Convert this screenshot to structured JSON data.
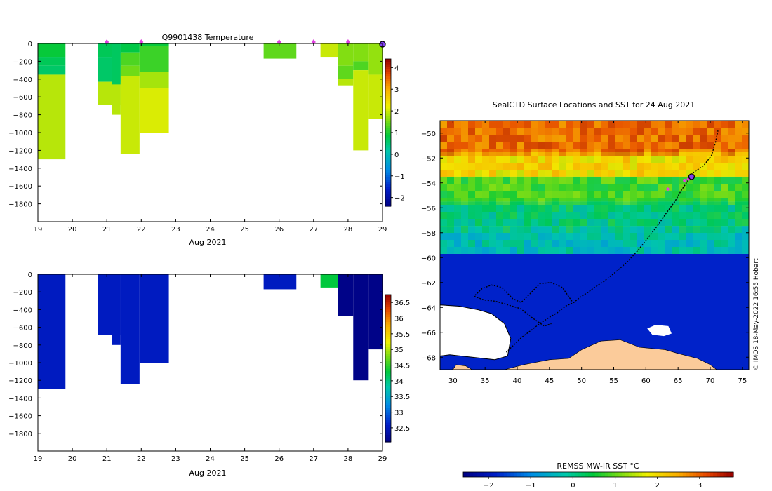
{
  "chart_data": [
    {
      "type": "heatmap",
      "title": "Q9901438  Temperature",
      "xlabel": "Aug 2021",
      "ylabel": "",
      "xlim": [
        19,
        29
      ],
      "ylim": [
        -2000,
        0
      ],
      "x_ticks": [
        19,
        20,
        21,
        22,
        23,
        24,
        25,
        26,
        27,
        28,
        29
      ],
      "y_ticks": [
        0,
        -200,
        -400,
        -600,
        -800,
        -1000,
        -1200,
        -1400,
        -1600,
        -1800
      ],
      "colorbar": {
        "min": -2.4,
        "max": 4.4,
        "ticks": [
          -2,
          -1,
          0,
          1,
          2,
          3,
          4
        ]
      },
      "profile_markers": [
        21,
        22,
        26,
        27,
        28
      ],
      "latest_marker": 29,
      "profiles": [
        {
          "t0": 19.0,
          "t1": 19.8,
          "depth": 1300,
          "layers": [
            {
              "to": 150,
              "v": 0.9
            },
            {
              "to": 250,
              "v": 0.7
            },
            {
              "to": 350,
              "v": 0.6
            },
            {
              "to": 1300,
              "v": 1.9
            }
          ]
        },
        {
          "t0": 20.75,
          "t1": 21.4,
          "depth": 690,
          "layers": [
            {
              "to": 150,
              "v": 0.7
            },
            {
              "to": 430,
              "v": 0.6
            },
            {
              "to": 690,
              "v": 1.9
            }
          ]
        },
        {
          "t0": 21.15,
          "t1": 21.4,
          "depth": 800,
          "layers": [
            {
              "to": 460,
              "v": 0.65
            },
            {
              "to": 800,
              "v": 1.9
            }
          ]
        },
        {
          "t0": 21.4,
          "t1": 21.95,
          "depth": 1240,
          "layers": [
            {
              "to": 100,
              "v": 0.8
            },
            {
              "to": 250,
              "v": 1.3
            },
            {
              "to": 370,
              "v": 1.5
            },
            {
              "to": 1240,
              "v": 2.0
            }
          ]
        },
        {
          "t0": 21.95,
          "t1": 22.8,
          "depth": 1000,
          "layers": [
            {
              "to": 30,
              "v": 0.9
            },
            {
              "to": 320,
              "v": 1.2
            },
            {
              "to": 500,
              "v": 1.8
            },
            {
              "to": 1000,
              "v": 2.1
            }
          ]
        },
        {
          "t0": 25.55,
          "t1": 26.5,
          "depth": 170,
          "layers": [
            {
              "to": 170,
              "v": 1.4
            }
          ]
        },
        {
          "t0": 27.2,
          "t1": 27.7,
          "depth": 150,
          "layers": [
            {
              "to": 150,
              "v": 2.0
            }
          ]
        },
        {
          "t0": 27.7,
          "t1": 28.15,
          "depth": 470,
          "layers": [
            {
              "to": 250,
              "v": 1.6
            },
            {
              "to": 400,
              "v": 1.4
            },
            {
              "to": 470,
              "v": 1.9
            }
          ]
        },
        {
          "t0": 28.15,
          "t1": 28.6,
          "depth": 1200,
          "layers": [
            {
              "to": 200,
              "v": 1.6
            },
            {
              "to": 300,
              "v": 1.3
            },
            {
              "to": 1200,
              "v": 2.0
            }
          ]
        },
        {
          "t0": 28.6,
          "t1": 29.05,
          "depth": 850,
          "layers": [
            {
              "to": 350,
              "v": 1.7
            },
            {
              "to": 850,
              "v": 2.0
            }
          ]
        }
      ]
    },
    {
      "type": "heatmap",
      "title": "",
      "xlabel": "Aug 2021",
      "ylabel": "",
      "xlim": [
        19,
        29
      ],
      "ylim": [
        -2000,
        0
      ],
      "x_ticks": [
        19,
        20,
        21,
        22,
        23,
        24,
        25,
        26,
        27,
        28,
        29
      ],
      "y_ticks": [
        0,
        -200,
        -400,
        -600,
        -800,
        -1000,
        -1200,
        -1400,
        -1600,
        -1800
      ],
      "colorbar": {
        "min": 32.05,
        "max": 36.75,
        "ticks": [
          32.5,
          33,
          33.5,
          34,
          34.5,
          35,
          35.5,
          36,
          36.5
        ]
      },
      "profiles": [
        {
          "t0": 19.0,
          "t1": 19.8,
          "depth": 1300,
          "layers": [
            {
              "to": 1300,
              "v": 32.55
            }
          ]
        },
        {
          "t0": 20.75,
          "t1": 21.4,
          "depth": 690,
          "layers": [
            {
              "to": 690,
              "v": 32.55
            }
          ]
        },
        {
          "t0": 21.15,
          "t1": 21.4,
          "depth": 800,
          "layers": [
            {
              "to": 800,
              "v": 32.55
            }
          ]
        },
        {
          "t0": 21.4,
          "t1": 21.95,
          "depth": 1240,
          "layers": [
            {
              "to": 1240,
              "v": 32.55
            }
          ]
        },
        {
          "t0": 21.95,
          "t1": 22.8,
          "depth": 1000,
          "layers": [
            {
              "to": 1000,
              "v": 32.55
            }
          ]
        },
        {
          "t0": 25.55,
          "t1": 26.5,
          "depth": 170,
          "layers": [
            {
              "to": 170,
              "v": 32.55
            }
          ]
        },
        {
          "t0": 27.2,
          "t1": 27.7,
          "depth": 150,
          "layers": [
            {
              "to": 150,
              "v": 34.3
            }
          ]
        },
        {
          "t0": 27.7,
          "t1": 28.15,
          "depth": 470,
          "layers": [
            {
              "to": 470,
              "v": 32.1
            }
          ]
        },
        {
          "t0": 28.15,
          "t1": 28.6,
          "depth": 1200,
          "layers": [
            {
              "to": 1200,
              "v": 32.1
            }
          ]
        },
        {
          "t0": 28.6,
          "t1": 29.05,
          "depth": 850,
          "layers": [
            {
              "to": 850,
              "v": 32.1
            }
          ]
        }
      ]
    },
    {
      "type": "heatmap",
      "title": "SealCTD Surface Locations and SST for 24 Aug 2021",
      "xlabel": "",
      "ylabel": "",
      "xlim": [
        28,
        76
      ],
      "ylim": [
        -69,
        -49
      ],
      "x_ticks": [
        30,
        35,
        40,
        45,
        50,
        55,
        60,
        65,
        70,
        75
      ],
      "y_ticks": [
        -50,
        -52,
        -54,
        -56,
        -58,
        -60,
        -62,
        -64,
        -66,
        -68
      ],
      "colorbar_label": "REMSS MW-IR SST °C",
      "colorbar": {
        "min": -2.6,
        "max": 3.8,
        "ticks": [
          -2,
          -1,
          0,
          1,
          2,
          3
        ]
      },
      "credit": "© IMOS 18-May-2022 16:55 Hobart",
      "sst_bands": [
        {
          "lat_top": -49,
          "lat_bottom": -51.5,
          "sst": 2.9
        },
        {
          "lat_top": -51.5,
          "lat_bottom": -53.5,
          "sst": 2.0
        },
        {
          "lat_top": -53.5,
          "lat_bottom": -55.5,
          "sst": 0.8
        },
        {
          "lat_top": -55.5,
          "lat_bottom": -57.5,
          "sst": 0.1
        },
        {
          "lat_top": -57.5,
          "lat_bottom": -59.7,
          "sst": -0.3
        },
        {
          "lat_top": -59.7,
          "lat_bottom": -69,
          "sst": -1.8
        }
      ],
      "ice_shelf_outline": [
        [
          28,
          -63.8
        ],
        [
          31,
          -63.9
        ],
        [
          34,
          -64.2
        ],
        [
          36,
          -64.5
        ],
        [
          38,
          -65.3
        ],
        [
          39,
          -66.5
        ],
        [
          38.5,
          -67.9
        ],
        [
          36.5,
          -68.2
        ],
        [
          33,
          -68
        ],
        [
          29.5,
          -67.8
        ],
        [
          28,
          -67.9
        ]
      ],
      "land_outline": [
        [
          30,
          -69
        ],
        [
          30.5,
          -68.6
        ],
        [
          32,
          -68.7
        ],
        [
          33,
          -69
        ],
        [
          38,
          -69
        ],
        [
          41,
          -68.6
        ],
        [
          45,
          -68.2
        ],
        [
          48,
          -68.1
        ],
        [
          50,
          -67.4
        ],
        [
          53,
          -66.7
        ],
        [
          56,
          -66.6
        ],
        [
          59,
          -67.2
        ],
        [
          63,
          -67.4
        ],
        [
          65,
          -67.7
        ],
        [
          68,
          -68.1
        ],
        [
          70,
          -68.6
        ],
        [
          71,
          -69
        ]
      ],
      "island_outline": [
        [
          60.2,
          -65.7
        ],
        [
          61.5,
          -65.4
        ],
        [
          63.5,
          -65.5
        ],
        [
          64,
          -66.1
        ],
        [
          62.8,
          -66.3
        ],
        [
          61,
          -66.2
        ]
      ],
      "track": [
        [
          67,
          -53.4
        ],
        [
          66.3,
          -54
        ],
        [
          65.5,
          -54.6
        ],
        [
          64.5,
          -55.5
        ],
        [
          63.2,
          -56.4
        ],
        [
          62,
          -57.3
        ],
        [
          60.5,
          -58.3
        ],
        [
          58.8,
          -59.4
        ],
        [
          57,
          -60.4
        ],
        [
          55.2,
          -61.2
        ],
        [
          53.5,
          -61.9
        ],
        [
          52,
          -62.4
        ],
        [
          51,
          -62.8
        ],
        [
          50,
          -63.1
        ],
        [
          49.5,
          -63.3
        ],
        [
          48.8,
          -63.6
        ],
        [
          47.5,
          -63.9
        ],
        [
          46.3,
          -64.4
        ],
        [
          45,
          -64.8
        ],
        [
          43.5,
          -65.3
        ],
        [
          42,
          -65.9
        ],
        [
          40.7,
          -66.4
        ],
        [
          39.5,
          -67
        ],
        [
          38.3,
          -67.6
        ]
      ],
      "track_loop": [
        [
          48.5,
          -63.5
        ],
        [
          47,
          -62.4
        ],
        [
          45.2,
          -62
        ],
        [
          43.5,
          -62.1
        ],
        [
          42,
          -62.9
        ],
        [
          40.6,
          -63.6
        ],
        [
          39.3,
          -63.3
        ],
        [
          37.6,
          -62.4
        ],
        [
          36,
          -62.2
        ],
        [
          34.5,
          -62.5
        ],
        [
          33.3,
          -63.1
        ],
        [
          34.8,
          -63.4
        ],
        [
          36.6,
          -63.5
        ],
        [
          38.6,
          -63.8
        ],
        [
          40.5,
          -64.1
        ],
        [
          42.5,
          -64.9
        ],
        [
          44.2,
          -65.5
        ],
        [
          45.3,
          -65.3
        ]
      ],
      "track_north": [
        [
          67.3,
          -53.2
        ],
        [
          69,
          -52.6
        ],
        [
          70.2,
          -51.8
        ],
        [
          70.8,
          -50.8
        ],
        [
          71.2,
          -49.8
        ]
      ],
      "profile_markers": [
        [
          66.6,
          -53.7
        ],
        [
          66,
          -53.8
        ],
        [
          63.4,
          -54.5
        ]
      ],
      "latest_position": [
        67.1,
        -53.5
      ]
    }
  ]
}
